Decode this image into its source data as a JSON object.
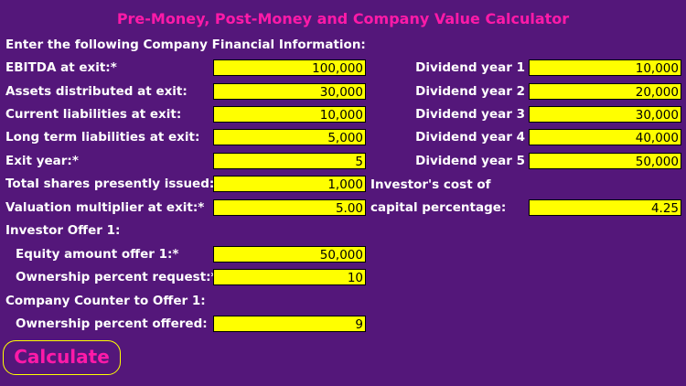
{
  "title": "Pre-Money, Post-Money and Company Value Calculator",
  "intro": "Enter the following Company Financial Information:",
  "left_fields": [
    {
      "label": "EBITDA at exit:*",
      "value": "100,000"
    },
    {
      "label": "Assets distributed at exit:",
      "value": "30,000"
    },
    {
      "label": "Current liabilities at exit:",
      "value": "10,000"
    },
    {
      "label": "Long term liabilities at exit:",
      "value": "5,000"
    },
    {
      "label": "Exit year:*",
      "value": "5"
    },
    {
      "label": "Total shares presently issued:*",
      "value": "1,000"
    },
    {
      "label": "Valuation multiplier at exit:*",
      "value": "5.00"
    }
  ],
  "dividends": [
    {
      "label": "Dividend year 1",
      "value": "10,000"
    },
    {
      "label": "Dividend year 2",
      "value": "20,000"
    },
    {
      "label": "Dividend year 3",
      "value": "30,000"
    },
    {
      "label": "Dividend year 4",
      "value": "40,000"
    },
    {
      "label": "Dividend year 5",
      "value": "50,000"
    }
  ],
  "cost_of_capital": {
    "label_line1": "Investor's cost of",
    "label_line2": "capital percentage:",
    "value": "4.25"
  },
  "offer": {
    "heading": "Investor Offer 1:",
    "equity_label": "Equity amount offer 1:*",
    "equity_value": "50,000",
    "ownership_label": "Ownership percent request:*",
    "ownership_value": "10"
  },
  "counter": {
    "heading": "Company Counter to Offer 1:",
    "ownership_label": "Ownership percent offered:",
    "ownership_value": "9"
  },
  "calculate_label": "Calculate",
  "colors": {
    "background": "#54177a",
    "accent": "#ff1aa8",
    "field": "#ffff00"
  }
}
